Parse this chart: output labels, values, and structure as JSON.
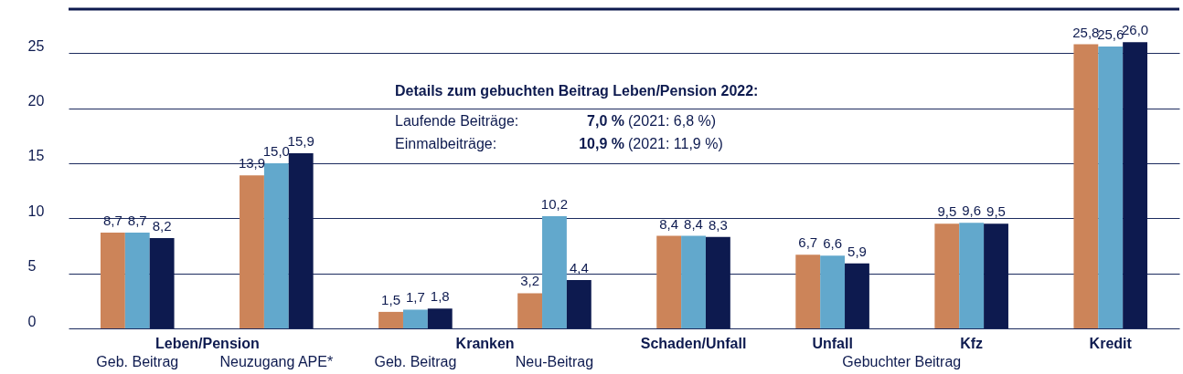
{
  "chart_data": {
    "type": "bar",
    "categories": [
      "Geb. Beitrag",
      "Neuzugang APE*",
      "Geb. Beitrag",
      "Neu-Beitrag",
      "Schaden/Unfall",
      "Unfall",
      "Kfz",
      "Kredit"
    ],
    "series": [
      {
        "color": "#cc8459",
        "values": [
          8.7,
          13.9,
          1.5,
          3.2,
          8.4,
          6.7,
          9.5,
          25.8
        ],
        "value_labels": [
          "8,7",
          "13,9",
          "1,5",
          "3,2",
          "8,4",
          "6,7",
          "9,5",
          "25,8"
        ]
      },
      {
        "color": "#62a8cc",
        "values": [
          8.7,
          15.0,
          1.7,
          10.2,
          8.4,
          6.6,
          9.6,
          25.6
        ],
        "value_labels": [
          "8,7",
          "15,0",
          "1,7",
          "10,2",
          "8,4",
          "6,6",
          "9,6",
          "25,6"
        ]
      },
      {
        "color": "#0d1a4f",
        "values": [
          8.2,
          15.9,
          1.8,
          4.4,
          8.3,
          5.9,
          9.5,
          26.0
        ],
        "value_labels": [
          "8,2",
          "15,9",
          "1,8",
          "4,4",
          "8,3",
          "5,9",
          "9,5",
          "26,0"
        ]
      }
    ],
    "ylim": [
      0,
      29
    ],
    "yticks": [
      0,
      5,
      10,
      15,
      20,
      25
    ],
    "grid": "y",
    "annotations": [
      "Leben/Pension",
      "Kranken",
      "Gebuchter Beitrag",
      "Details zum gebuchten Beitrag Leben/Pension 2022:",
      "Laufende Beiträge:",
      "7,0 %",
      "(2021:   6,8 %)",
      "Einmalbeiträge:",
      "10,9 %",
      "(2021:   11,9 %)"
    ]
  }
}
